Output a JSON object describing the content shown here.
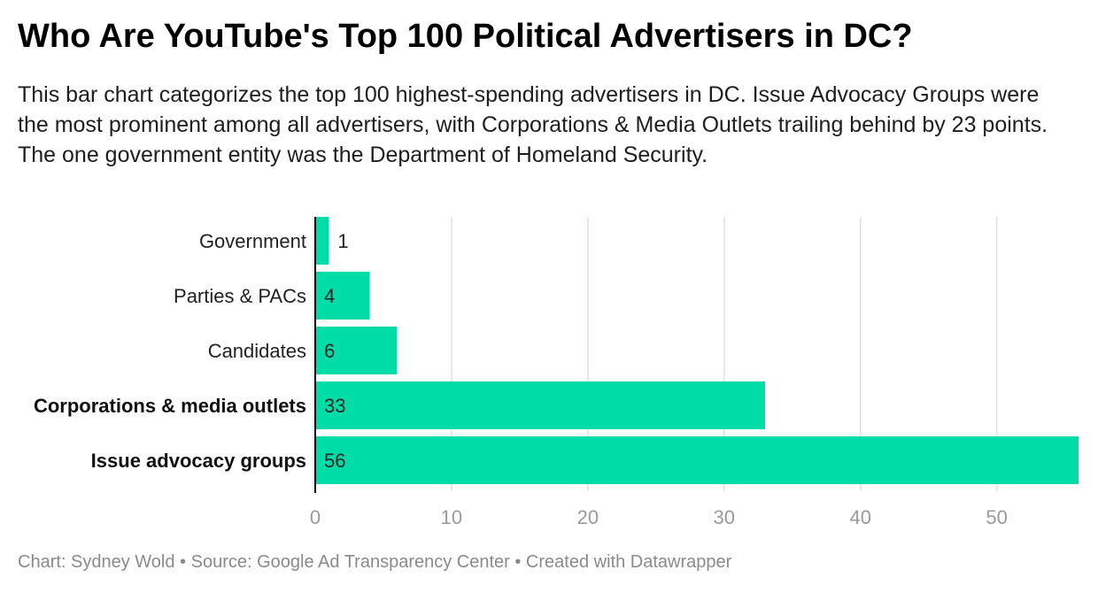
{
  "title": "Who Are YouTube's Top 100 Political Advertisers in DC?",
  "subtitle": "This bar chart categorizes the top 100 highest-spending advertisers in DC. Issue Advocacy Groups were the most prominent among all advertisers, with Corporations & Media Outlets trailing behind by 23 points. The one government entity was the Department of Homeland Security.",
  "footer": "Chart: Sydney Wold • Source: Google Ad Transparency Center • Created with Datawrapper",
  "colors": {
    "bar": "#00dca8",
    "grid": "#e0e0e0",
    "axis": "#000000",
    "tick": "#9a9a9a"
  },
  "chart_data": {
    "type": "bar",
    "orientation": "horizontal",
    "categories": [
      "Government",
      "Parties & PACs",
      "Candidates",
      "Corporations & media outlets",
      "Issue advocacy groups"
    ],
    "values": [
      1,
      4,
      6,
      33,
      56
    ],
    "bold_categories": [
      "Corporations & media outlets",
      "Issue advocacy groups"
    ],
    "xticks": [
      0,
      10,
      20,
      30,
      40,
      50
    ],
    "xlim": [
      0,
      56
    ],
    "grid": true
  }
}
